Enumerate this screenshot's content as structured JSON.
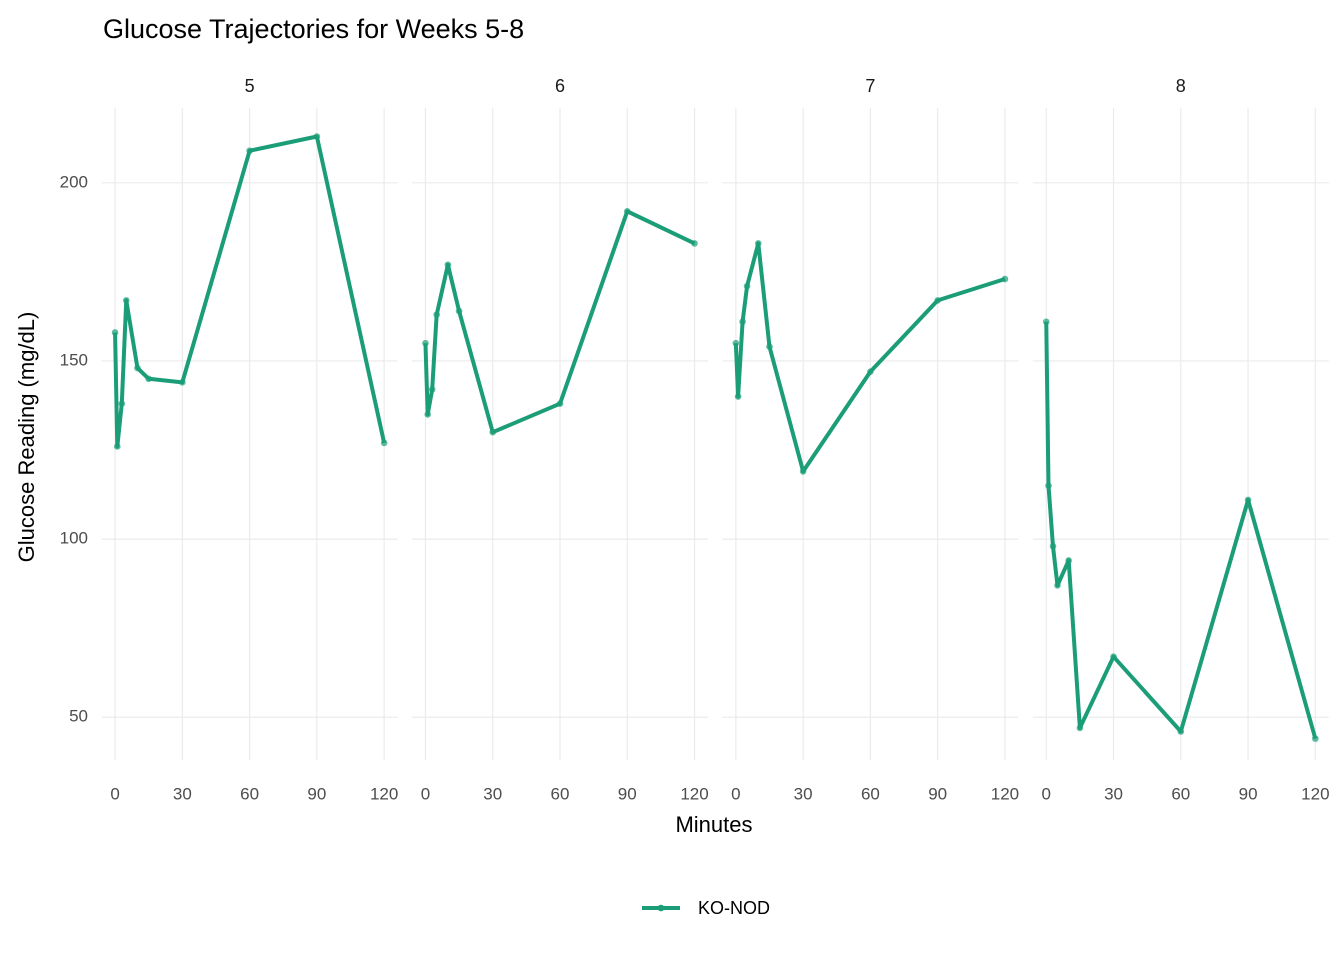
{
  "chart_data": {
    "type": "line",
    "title": "Glucose Trajectories for Weeks 5-8",
    "x_label": "Minutes",
    "y_label": "Glucose Reading (mg/dL)",
    "facets": [
      "5",
      "6",
      "7",
      "8"
    ],
    "x": [
      0,
      1,
      3,
      5,
      10,
      15,
      30,
      60,
      90,
      120
    ],
    "series": [
      {
        "name": "KO-NOD",
        "color": "#1b9e77",
        "values": [
          [
            158,
            126,
            138,
            167,
            148,
            145,
            144,
            209,
            213,
            127
          ],
          [
            155,
            135,
            142,
            163,
            177,
            164,
            130,
            138,
            192,
            183
          ],
          [
            155,
            140,
            161,
            171,
            183,
            154,
            119,
            147,
            167,
            173
          ],
          [
            161,
            115,
            98,
            87,
            94,
            47,
            67,
            46,
            111,
            44
          ]
        ]
      }
    ],
    "xlim": [
      -6,
      126
    ],
    "xticks": [
      0,
      30,
      60,
      90,
      120
    ],
    "ylim": [
      38,
      221
    ],
    "yticks": [
      50,
      100,
      150,
      200
    ],
    "grid": true,
    "legend": "bottom"
  }
}
